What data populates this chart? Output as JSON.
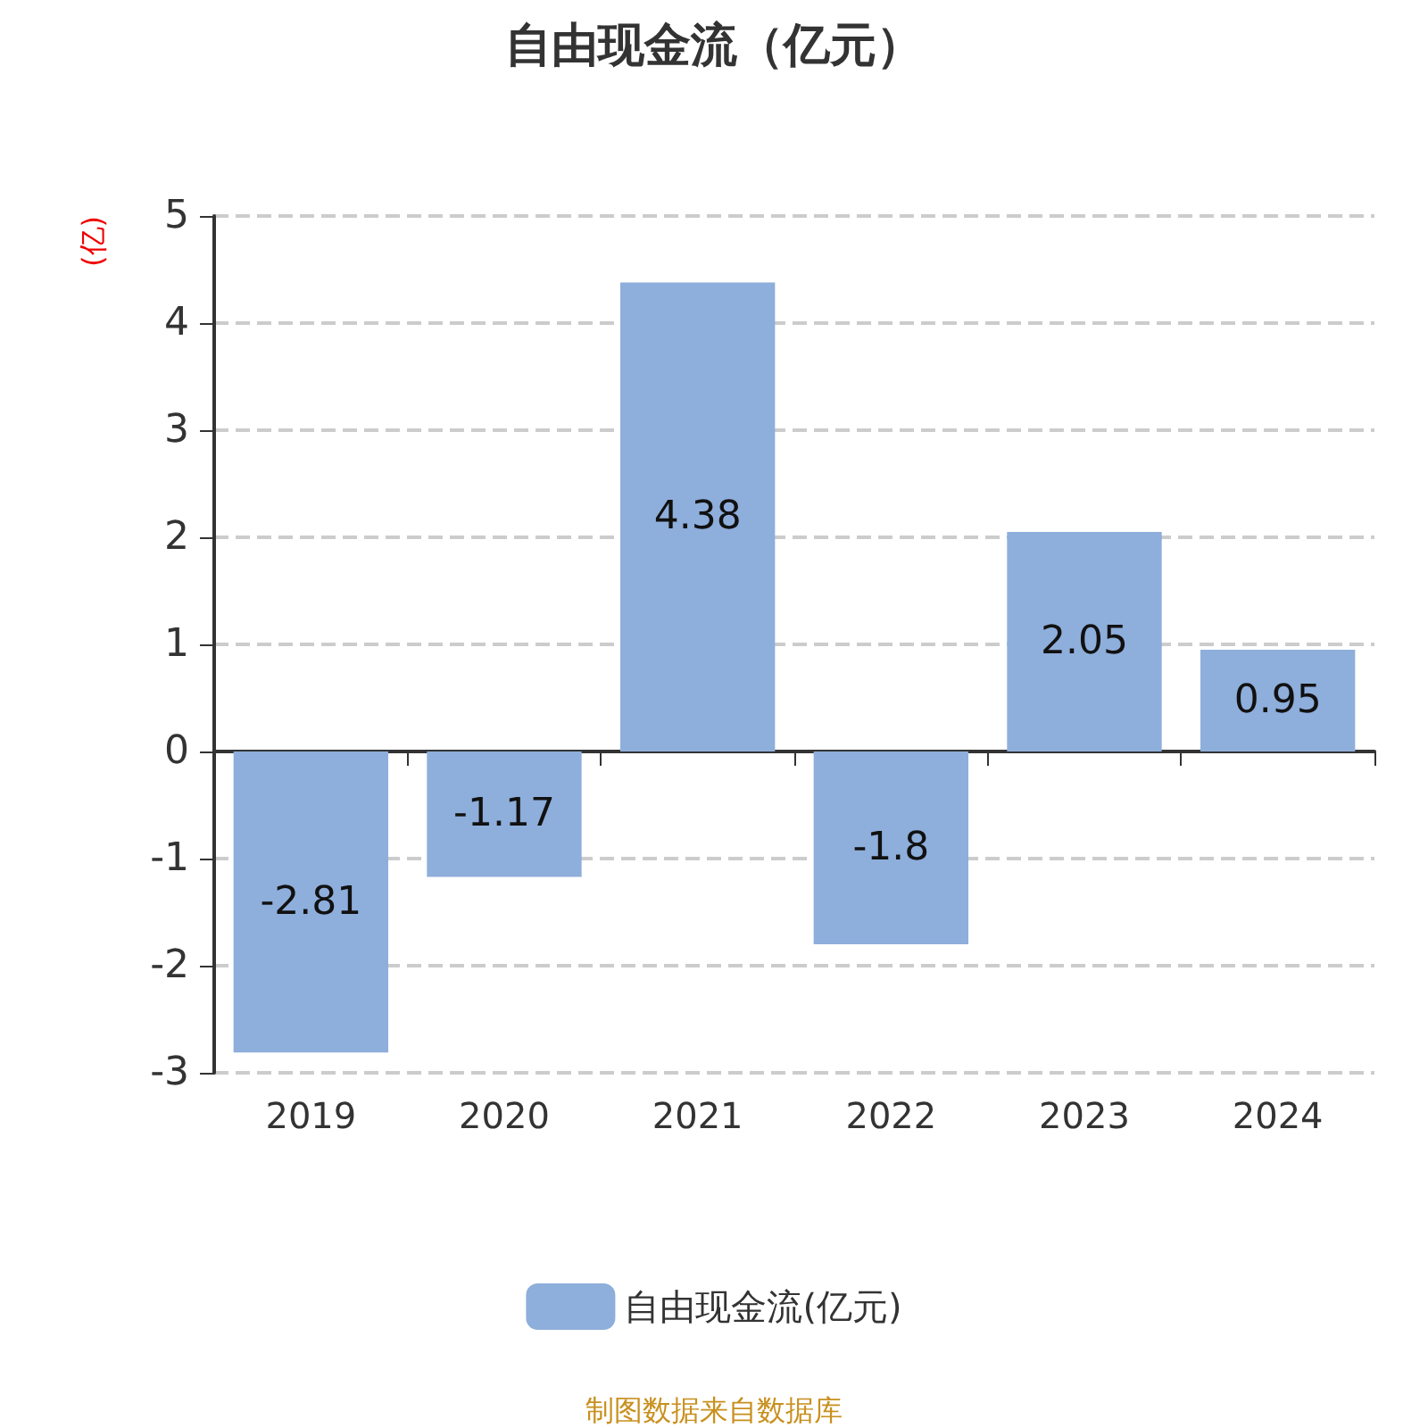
{
  "chart_data": {
    "type": "bar",
    "title": "自由现金流（亿元）",
    "ylabel": "(亿)",
    "categories": [
      "2019",
      "2020",
      "2021",
      "2022",
      "2023",
      "2024"
    ],
    "series": [
      {
        "name": "自由现金流(亿元)",
        "color": "#8eaedb",
        "values": [
          -2.81,
          -1.17,
          4.38,
          -1.8,
          2.05,
          0.95
        ]
      }
    ],
    "ylim": [
      -3,
      5
    ],
    "yticks": [
      -3,
      -2,
      -1,
      0,
      1,
      2,
      3,
      4,
      5
    ],
    "grid": "y",
    "legend": "bottom",
    "data_labels": true,
    "annotations": [
      "制图数据来自数据库"
    ]
  }
}
